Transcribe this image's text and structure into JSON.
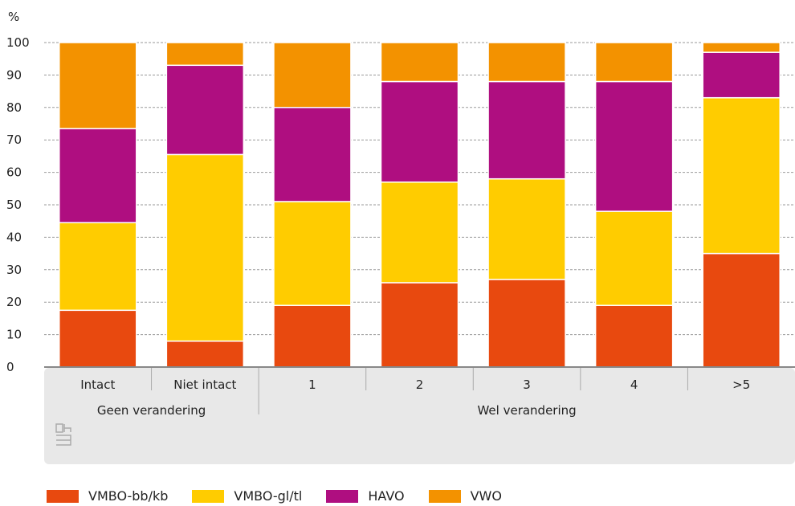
{
  "chart_data": {
    "type": "bar",
    "stacked": true,
    "unit_label": "%",
    "ylim": [
      0,
      100
    ],
    "yticks": [
      0,
      10,
      20,
      30,
      40,
      50,
      60,
      70,
      80,
      90,
      100
    ],
    "categories": [
      "Intact",
      "Niet intact",
      "1",
      "2",
      "3",
      "4",
      ">5"
    ],
    "groups": [
      {
        "label": "Geen verandering",
        "categories": [
          "Intact",
          "Niet intact"
        ]
      },
      {
        "label": "Wel verandering",
        "categories": [
          "1",
          "2",
          "3",
          "4",
          ">5"
        ]
      }
    ],
    "series": [
      {
        "name": "VMBO-bb/kb",
        "color": "#e8490f",
        "values": [
          17.5,
          8,
          19,
          26,
          27,
          19,
          35
        ]
      },
      {
        "name": "VMBO-gl/tl",
        "color": "#ffcc00",
        "values": [
          27,
          57.5,
          32,
          31,
          31,
          29,
          48
        ]
      },
      {
        "name": "HAVO",
        "color": "#af0e80",
        "values": [
          29,
          27.5,
          29,
          31,
          30,
          40,
          14
        ]
      },
      {
        "name": "VWO",
        "color": "#f39200",
        "values": [
          26.5,
          7,
          20,
          12,
          12,
          12,
          3
        ]
      }
    ],
    "grid": true,
    "legend_position": "bottom-left"
  }
}
